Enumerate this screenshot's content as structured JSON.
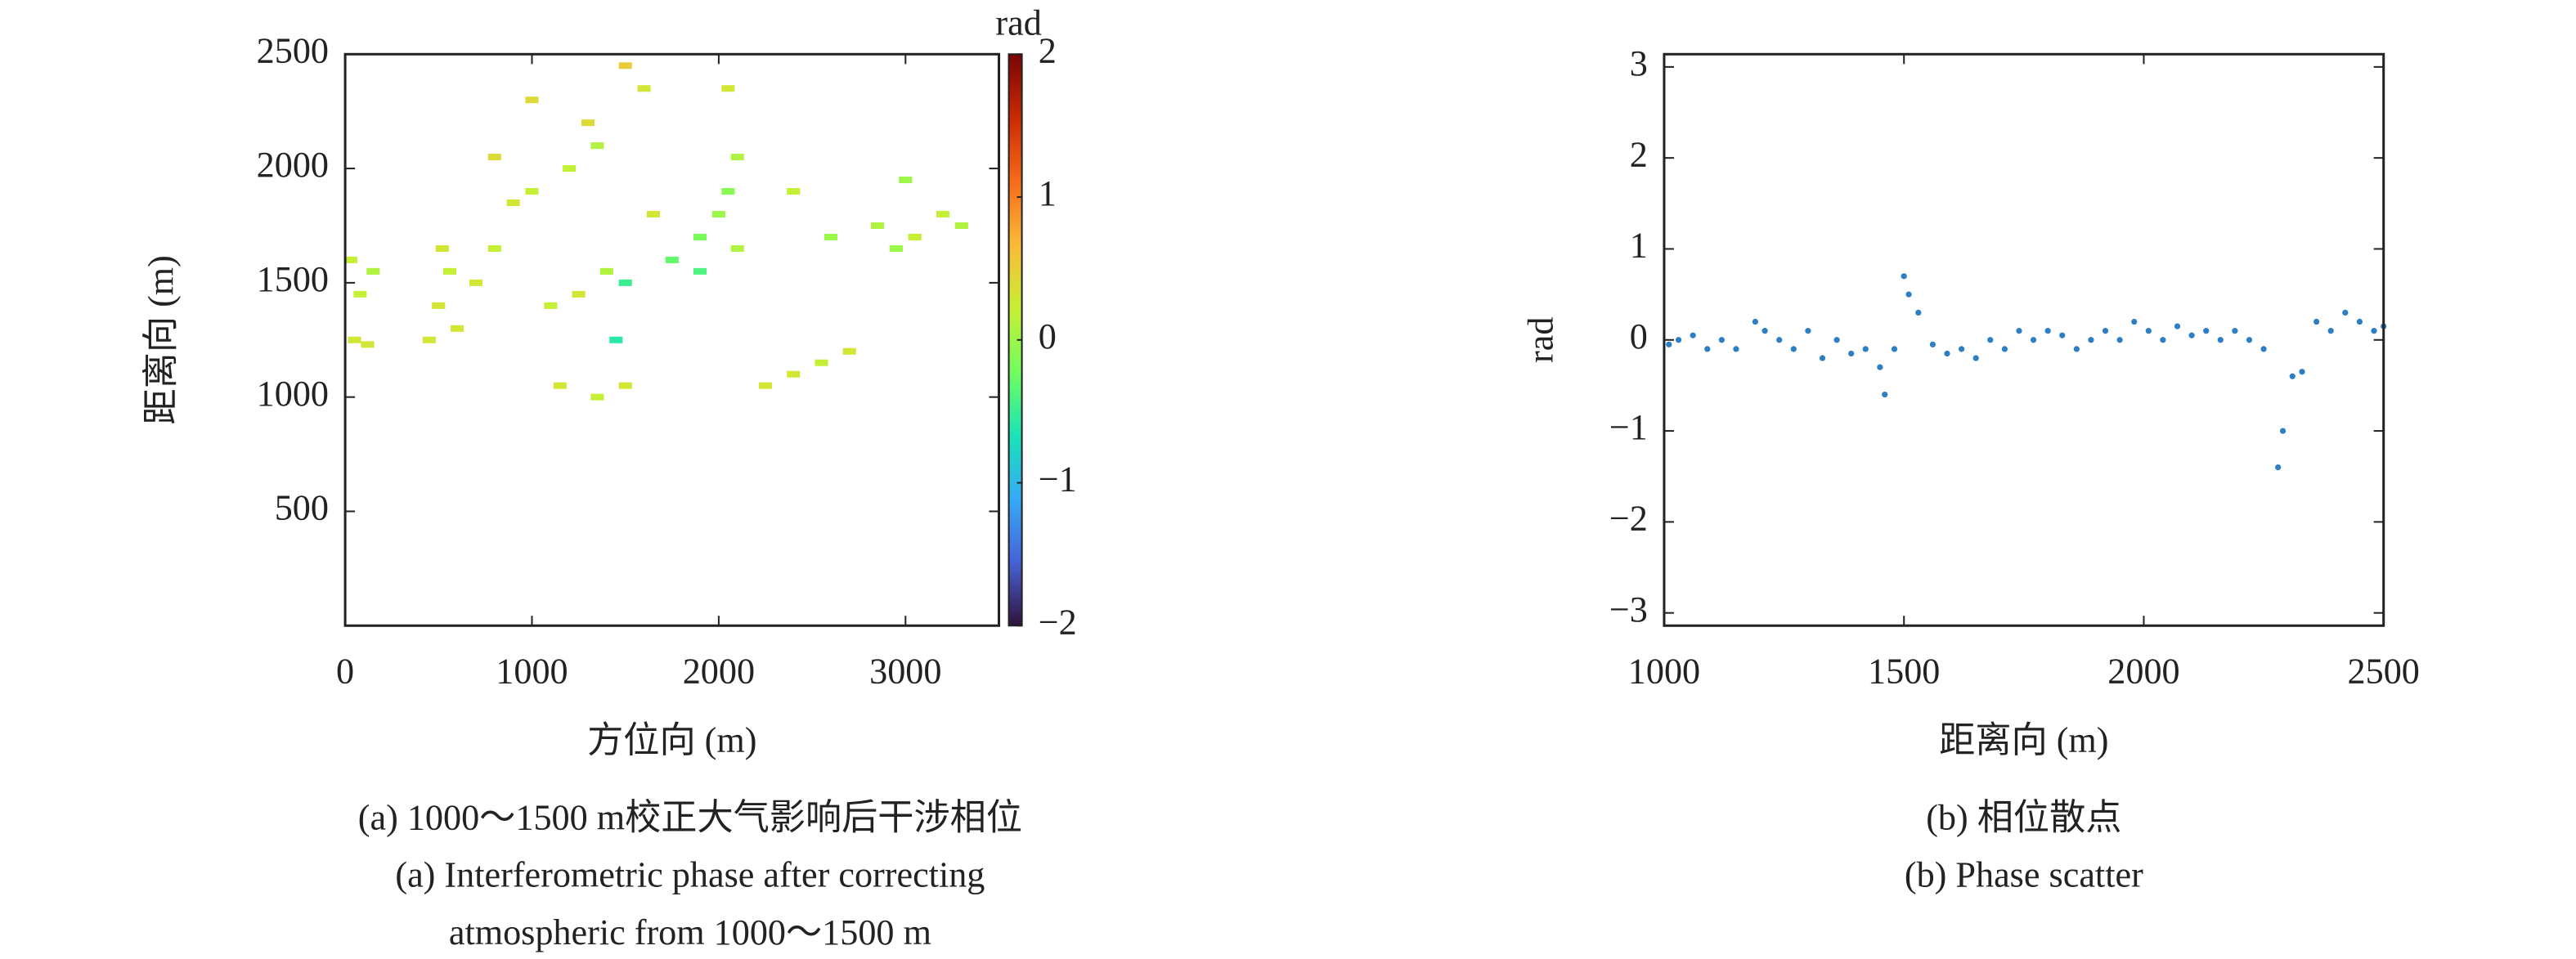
{
  "chart_data": [
    {
      "type": "scatter",
      "xlabel": "方位向 (m)",
      "ylabel": "距离向 (m)",
      "xlim": [
        0,
        3500
      ],
      "xticks": [
        0,
        1000,
        2000,
        3000
      ],
      "ylim": [
        0,
        2500
      ],
      "yticks": [
        500,
        1000,
        1500,
        2000,
        2500
      ],
      "x": [
        50,
        120,
        80,
        150,
        30,
        450,
        500,
        560,
        520,
        600,
        700,
        800,
        900,
        800,
        1000,
        1100,
        1250,
        1400,
        1200,
        1350,
        1000,
        1300,
        1500,
        1600,
        1650,
        1500,
        1450,
        1750,
        1900,
        2050,
        2000,
        2100,
        2050,
        1900,
        1150,
        1350,
        1500,
        2250,
        2400,
        2550,
        2700,
        2100,
        2600,
        2850,
        2950,
        3050,
        3200,
        3300,
        3000,
        2400
      ],
      "y": [
        1250,
        1230,
        1450,
        1550,
        1600,
        1250,
        1400,
        1550,
        1650,
        1300,
        1500,
        1650,
        1850,
        2050,
        1900,
        1400,
        1450,
        1550,
        2000,
        2100,
        2300,
        2200,
        2450,
        2350,
        1800,
        1500,
        1250,
        1600,
        1700,
        1900,
        1800,
        2050,
        2350,
        1550,
        1050,
        1000,
        1050,
        1050,
        1100,
        1150,
        1200,
        1650,
        1700,
        1750,
        1650,
        1700,
        1800,
        1750,
        1950,
        1900
      ],
      "values": [
        0.3,
        0.3,
        0.2,
        0.1,
        0.2,
        0.3,
        0.3,
        0.2,
        0.3,
        0.3,
        0.3,
        0.2,
        0.3,
        0.4,
        0.2,
        0.2,
        0.3,
        0.1,
        0.2,
        0.1,
        0.4,
        0.4,
        0.5,
        0.3,
        0.3,
        -0.5,
        -0.6,
        -0.3,
        -0.2,
        -0.1,
        0.0,
        0.1,
        0.3,
        -0.4,
        0.3,
        0.2,
        0.3,
        0.3,
        0.3,
        0.2,
        0.3,
        0.1,
        0.0,
        0.1,
        0.0,
        0.2,
        0.2,
        0.1,
        0.0,
        0.2
      ],
      "colormap": [
        "#30123b",
        "#4662d7",
        "#36aaf9",
        "#1ae4b6",
        "#72fe5e",
        "#c8ef34",
        "#faba39",
        "#f66b19",
        "#ca2a04",
        "#7a0403"
      ],
      "clim": [
        -2,
        2
      ],
      "cticks": [
        {
          "value": -2,
          "label": "−2"
        },
        {
          "value": -1,
          "label": "−1"
        },
        0,
        1,
        2
      ],
      "colorbar_label": "rad",
      "caption": [
        "(a) 1000～1500 m校正大气影响后干涉相位",
        "(a)  Interferometric phase after correcting",
        "atmospheric from 1000～1500 m"
      ]
    },
    {
      "type": "scatter",
      "xlabel": "距离向 (m)",
      "ylabel": "rad",
      "xlim": [
        1000,
        2500
      ],
      "xticks": [
        1000,
        1500,
        2000,
        2500
      ],
      "ylim": [
        -3.14,
        3.14
      ],
      "yticks": [
        {
          "value": -3,
          "label": "−3"
        },
        {
          "value": -2,
          "label": "−2"
        },
        {
          "value": -1,
          "label": "−1"
        },
        0,
        1,
        2,
        3
      ],
      "color": "#2e7ec4",
      "x": [
        1010,
        1030,
        1060,
        1090,
        1120,
        1150,
        1190,
        1210,
        1240,
        1270,
        1300,
        1330,
        1360,
        1390,
        1420,
        1450,
        1460,
        1480,
        1500,
        1510,
        1530,
        1560,
        1590,
        1620,
        1650,
        1680,
        1710,
        1740,
        1770,
        1800,
        1830,
        1860,
        1890,
        1920,
        1950,
        1980,
        2010,
        2040,
        2070,
        2100,
        2130,
        2160,
        2190,
        2220,
        2250,
        2280,
        2290,
        2310,
        2330,
        2360,
        2390,
        2420,
        2450,
        2480,
        2500
      ],
      "y": [
        -0.05,
        0.0,
        0.05,
        -0.1,
        0.0,
        -0.1,
        0.2,
        0.1,
        0.0,
        -0.1,
        0.1,
        -0.2,
        0.0,
        -0.15,
        -0.1,
        -0.3,
        -0.6,
        -0.1,
        0.7,
        0.5,
        0.3,
        -0.05,
        -0.15,
        -0.1,
        -0.2,
        0.0,
        -0.1,
        0.1,
        0.0,
        0.1,
        0.05,
        -0.1,
        0.0,
        0.1,
        0.0,
        0.2,
        0.1,
        0.0,
        0.15,
        0.05,
        0.1,
        0.0,
        0.1,
        0.0,
        -0.1,
        -1.4,
        -1.0,
        -0.4,
        -0.35,
        0.2,
        0.1,
        0.3,
        0.2,
        0.1,
        0.15
      ],
      "caption": [
        "(b) 相位散点",
        "(b) Phase scatter"
      ]
    }
  ]
}
